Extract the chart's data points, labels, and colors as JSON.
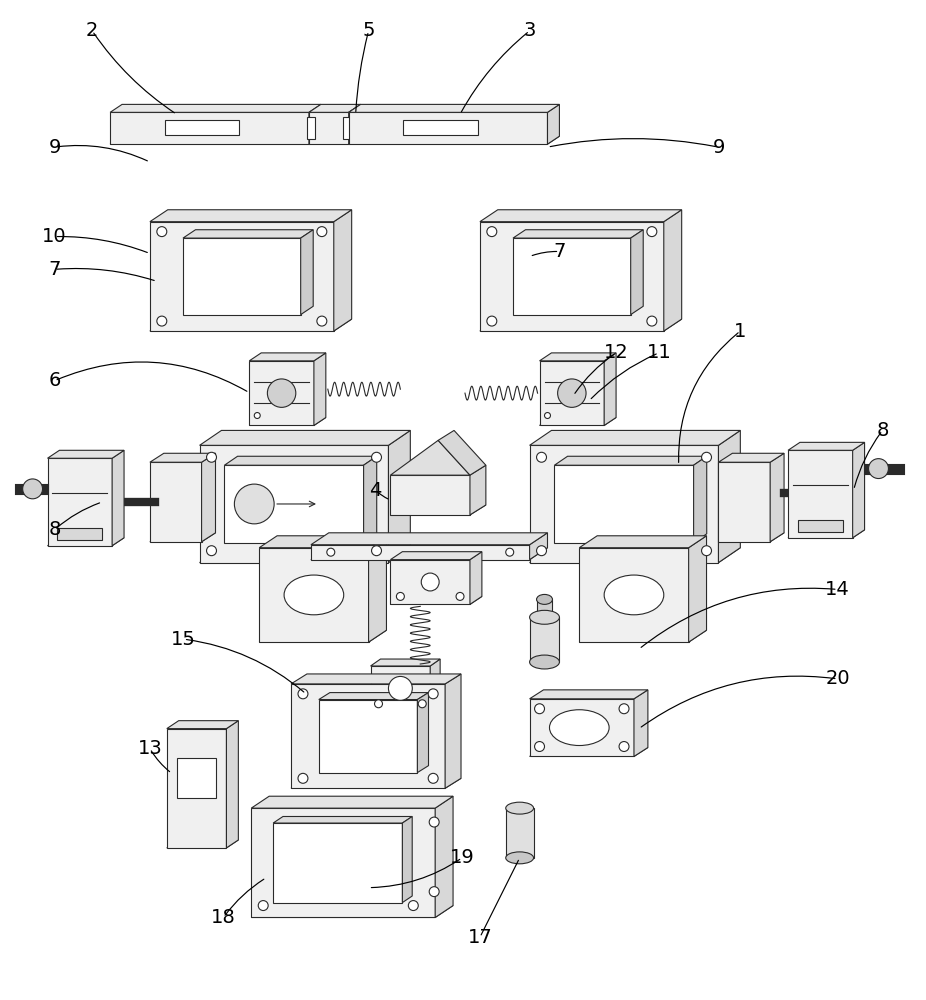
{
  "bg_color": "#ffffff",
  "lc": "#2a2a2a",
  "lw": 0.8,
  "fig_width": 9.26,
  "fig_height": 10.0
}
